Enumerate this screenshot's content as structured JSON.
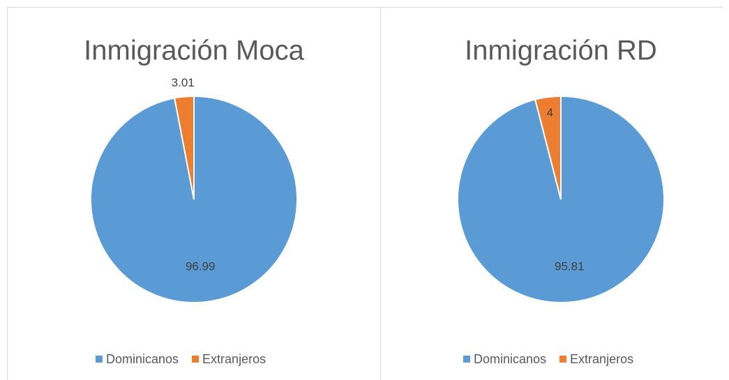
{
  "chart_data": [
    {
      "type": "pie",
      "title": "Inmigración Moca",
      "categories": [
        "Dominicanos",
        "Extranjeros"
      ],
      "values": [
        96.99,
        3.01
      ],
      "colors": [
        "#5b9bd5",
        "#ed7d31"
      ],
      "legend": "bottom"
    },
    {
      "type": "pie",
      "title": "Inmigración RD",
      "categories": [
        "Dominicanos",
        "Extranjeros"
      ],
      "values": [
        95.81,
        4
      ],
      "colors": [
        "#5b9bd5",
        "#ed7d31"
      ],
      "legend": "bottom"
    }
  ]
}
